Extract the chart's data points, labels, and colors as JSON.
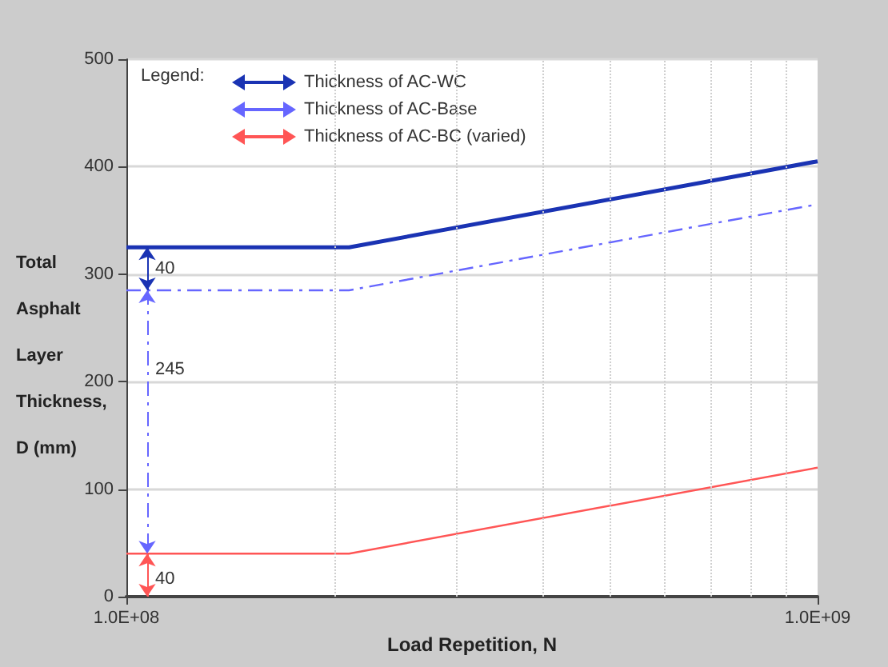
{
  "chart_data": {
    "type": "line",
    "xlabel": "Load Repetition, N",
    "ylabel": "Total Asphalt Layer Thickness, D (mm)",
    "legend_title": "Legend:",
    "x": [
      100000000,
      210000000,
      1000000000
    ],
    "series": [
      {
        "name": "Thickness of AC-WC",
        "color": "#1a33b3",
        "values": [
          325,
          325,
          405
        ],
        "line_style": "solid"
      },
      {
        "name": "Thickness of AC-Base",
        "color": "#6666ff",
        "values": [
          285,
          285,
          365
        ],
        "line_style": "dashed"
      },
      {
        "name": "Thickness of AC-BC (varied)",
        "color": "#ff5555",
        "values": [
          40,
          40,
          120
        ],
        "line_style": "solid"
      }
    ],
    "annotations": [
      "40",
      "245",
      "40"
    ],
    "log": "x",
    "xlim": [
      100000000,
      1000000000
    ],
    "xticks": [
      {
        "value": 100000000,
        "label": "1.0E+08"
      },
      {
        "value": 200000000,
        "label": null
      },
      {
        "value": 300000000,
        "label": null
      },
      {
        "value": 400000000,
        "label": null
      },
      {
        "value": 500000000,
        "label": null
      },
      {
        "value": 600000000,
        "label": null
      },
      {
        "value": 700000000,
        "label": null
      },
      {
        "value": 800000000,
        "label": null
      },
      {
        "value": 900000000,
        "label": null
      },
      {
        "value": 1000000000,
        "label": "1.0E+09"
      }
    ],
    "ylim": [
      0,
      500
    ],
    "yticks": [
      0,
      100,
      200,
      300,
      400,
      500
    ],
    "grid": true,
    "legend": "top left",
    "marker": "none"
  }
}
